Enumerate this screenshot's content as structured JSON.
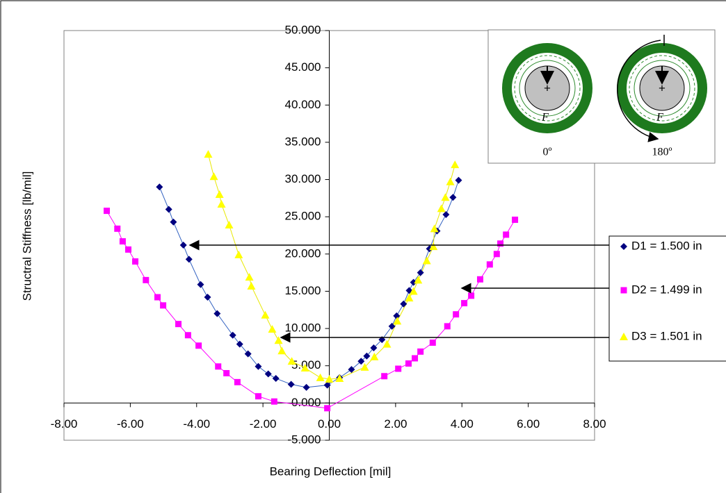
{
  "chart_data": {
    "type": "scatter-line",
    "x_label": "Bearing Deflection [mil]",
    "y_label": "Structral Stiffness [lb/mil]",
    "xlim": [
      -8,
      8
    ],
    "ylim": [
      -5,
      50
    ],
    "xticks": [
      {
        "value": -8,
        "label": "-8.00"
      },
      {
        "value": -6,
        "label": "-6.00"
      },
      {
        "value": -4,
        "label": "-4.00"
      },
      {
        "value": -2,
        "label": "-2.00"
      },
      {
        "value": 0,
        "label": "0.00"
      },
      {
        "value": 2,
        "label": "2.00"
      },
      {
        "value": 4,
        "label": "4.00"
      },
      {
        "value": 6,
        "label": "6.00"
      },
      {
        "value": 8,
        "label": "8.00"
      }
    ],
    "yticks": [
      {
        "value": -5,
        "label": "-5.000"
      },
      {
        "value": 0,
        "label": "0.000"
      },
      {
        "value": 5,
        "label": "5.000"
      },
      {
        "value": 10,
        "label": "10.000"
      },
      {
        "value": 15,
        "label": "15.000"
      },
      {
        "value": 20,
        "label": "20.000"
      },
      {
        "value": 25,
        "label": "25.000"
      },
      {
        "value": 30,
        "label": "30.000"
      },
      {
        "value": 35,
        "label": "35.000"
      },
      {
        "value": 40,
        "label": "40.000"
      },
      {
        "value": 45,
        "label": "45.000"
      },
      {
        "value": 50,
        "label": "50.000"
      }
    ],
    "grid": false,
    "series": [
      {
        "name": "D1 = 1.500 in",
        "color": "#000080",
        "line_color": "#3060c0",
        "marker": "diamond",
        "x": [
          -5.12,
          -4.84,
          -4.7,
          -4.4,
          -4.23,
          -3.88,
          -3.67,
          -3.38,
          -2.91,
          -2.7,
          -2.45,
          -2.14,
          -1.84,
          -1.61,
          -1.15,
          -0.69,
          -0.06,
          0.31,
          0.67,
          0.96,
          1.13,
          1.34,
          1.59,
          1.89,
          2.03,
          2.24,
          2.41,
          2.54,
          2.75,
          3.02,
          3.25,
          3.52,
          3.73,
          3.9
        ],
        "values": [
          29.0,
          26.0,
          24.3,
          21.2,
          19.3,
          15.9,
          14.2,
          12.0,
          9.1,
          7.9,
          6.6,
          4.9,
          3.9,
          3.3,
          2.5,
          2.1,
          2.4,
          3.4,
          4.5,
          5.6,
          6.3,
          7.4,
          8.5,
          10.3,
          11.7,
          13.3,
          15.1,
          16.2,
          17.5,
          20.7,
          23.1,
          25.3,
          27.6,
          29.9
        ]
      },
      {
        "name": "D2 = 1.499 in",
        "color": "#ff00ff",
        "line_color": "#ff00ff",
        "marker": "square",
        "x": [
          -6.71,
          -6.39,
          -6.23,
          -6.06,
          -5.85,
          -5.53,
          -5.18,
          -5.01,
          -4.55,
          -4.26,
          -3.94,
          -3.35,
          -3.1,
          -2.77,
          -2.14,
          -1.66,
          -0.06,
          1.66,
          2.08,
          2.39,
          2.58,
          2.75,
          3.12,
          3.56,
          3.82,
          4.07,
          4.28,
          4.55,
          4.84,
          5.05,
          5.16,
          5.33,
          5.6
        ],
        "values": [
          25.8,
          23.4,
          21.7,
          20.6,
          19.0,
          16.5,
          14.2,
          13.1,
          10.6,
          9.1,
          7.7,
          4.9,
          4.0,
          2.8,
          0.9,
          0.2,
          -0.7,
          3.6,
          4.6,
          5.3,
          6.0,
          6.9,
          8.1,
          10.3,
          11.9,
          13.4,
          14.4,
          16.6,
          18.6,
          20.0,
          21.4,
          22.6,
          24.6
        ]
      },
      {
        "name": "D3 = 1.501 in",
        "color": "#ffff00",
        "line_color": "#e8e800",
        "marker": "triangle",
        "x": [
          -3.65,
          -3.48,
          -3.31,
          -3.25,
          -3.02,
          -2.73,
          -2.41,
          -2.35,
          -1.93,
          -1.72,
          -1.53,
          -1.43,
          -1.13,
          -0.73,
          -0.27,
          0.0,
          0.31,
          1.07,
          1.36,
          1.74,
          2.05,
          2.41,
          2.54,
          2.68,
          2.94,
          3.14,
          3.17,
          3.38,
          3.5,
          3.65,
          3.79
        ],
        "values": [
          33.4,
          30.4,
          28.0,
          26.7,
          23.9,
          19.9,
          16.9,
          15.7,
          11.8,
          9.9,
          8.4,
          7.0,
          5.6,
          4.7,
          3.4,
          3.2,
          3.3,
          4.8,
          6.2,
          7.9,
          11.0,
          14.1,
          15.0,
          16.5,
          19.1,
          21.0,
          23.4,
          26.1,
          27.6,
          29.7,
          32.0
        ]
      }
    ],
    "inset": {
      "force_labels": [
        "F",
        "F"
      ],
      "angle_labels": [
        "0º",
        "180º"
      ]
    }
  }
}
